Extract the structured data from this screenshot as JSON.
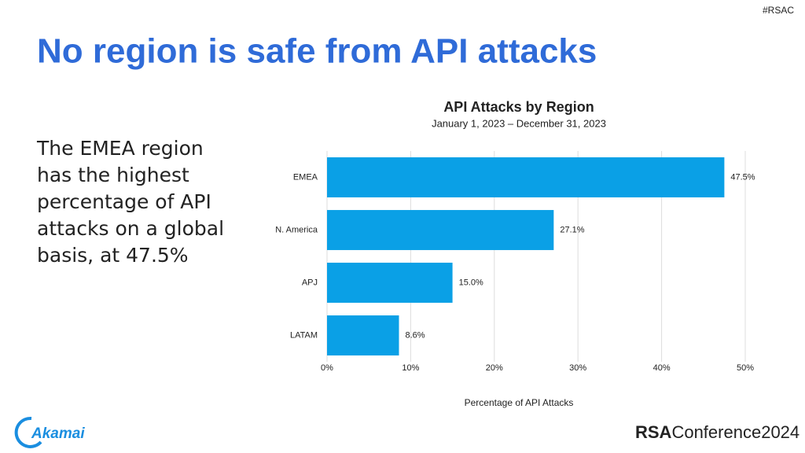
{
  "slide": {
    "hashtag": "#RSAC",
    "title": "No region is safe from API attacks",
    "body": "The EMEA region has the highest percentage of API attacks on a global basis, at 47.5%",
    "logo": "Akamai",
    "footer_brand": "RSA",
    "footer_conference": "Conference",
    "footer_year": "2024"
  },
  "chart_data": {
    "type": "hbar",
    "title": "API Attacks by Region",
    "subtitle": "January 1, 2023 – December 31, 2023",
    "x_label": "Percentage of API Attacks",
    "categories": [
      "EMEA",
      "N. America",
      "APJ",
      "LATAM"
    ],
    "values": [
      47.5,
      27.1,
      15.0,
      8.6
    ],
    "value_labels": [
      "47.5%",
      "27.1%",
      "15.0%",
      "8.6%"
    ],
    "color": "#0aa0e6",
    "xlim": [
      0,
      50
    ],
    "xticks": [
      {
        "value": 0,
        "label": "0%"
      },
      {
        "value": 10,
        "label": "10%"
      },
      {
        "value": 20,
        "label": "20%"
      },
      {
        "value": 30,
        "label": "30%"
      },
      {
        "value": 40,
        "label": "40%"
      },
      {
        "value": 50,
        "label": "50%"
      }
    ],
    "grid": true
  }
}
